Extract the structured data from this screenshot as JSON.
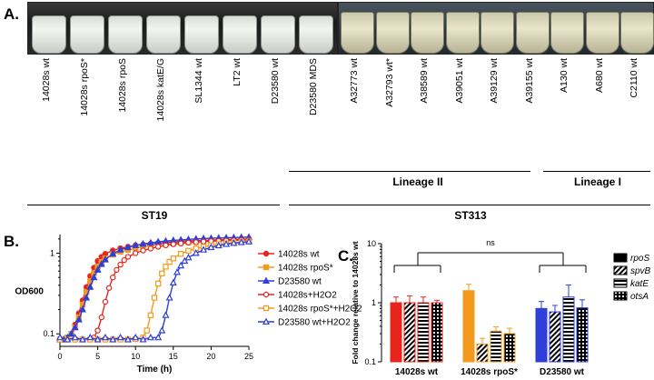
{
  "panels": {
    "a": "A.",
    "b": "B.",
    "c": "C."
  },
  "panel_a": {
    "strains": [
      "14028s wt",
      "14028s rpoS*",
      "14028s rpoS",
      "14028s katE/G",
      "SL1344 wt",
      "LT2 wt",
      "D23580 wt",
      "D23580 MDS",
      "A32773 wt",
      "A32793 wt*",
      "A38589 wt",
      "A39051 wt",
      "A39129 wt",
      "A39155 wt",
      "A130 wt",
      "A680 wt",
      "C2110 wt"
    ],
    "groups": {
      "lineage2": "Lineage II",
      "lineage1": "Lineage I",
      "st19": "ST19",
      "st313": "ST313"
    }
  },
  "chart_data": [
    {
      "type": "line",
      "xlabel": "Time (h)",
      "ylabel": "OD600",
      "x_ticks": [
        0,
        5,
        10,
        15,
        20,
        25
      ],
      "y_ticks": [
        "0.1",
        "1"
      ],
      "xlim": [
        0,
        25
      ],
      "ylim": [
        0.07,
        1.7
      ],
      "y_scale": "log",
      "legend": "right",
      "series": [
        {
          "name": "14028s wt",
          "color": "#e8251d",
          "marker": "circle-filled",
          "x": [
            0,
            0.5,
            1,
            1.5,
            2,
            2.5,
            3,
            3.5,
            4,
            4.5,
            5,
            5.5,
            6,
            7,
            8,
            9,
            10,
            11,
            12,
            13,
            14,
            15,
            16,
            17,
            18,
            19,
            20,
            21,
            22,
            23,
            24,
            25
          ],
          "y": [
            0.085,
            0.085,
            0.09,
            0.1,
            0.13,
            0.18,
            0.26,
            0.38,
            0.52,
            0.66,
            0.8,
            0.9,
            0.98,
            1.08,
            1.15,
            1.2,
            1.25,
            1.28,
            1.31,
            1.34,
            1.36,
            1.38,
            1.4,
            1.42,
            1.43,
            1.44,
            1.45,
            1.46,
            1.47,
            1.48,
            1.49,
            1.5
          ]
        },
        {
          "name": "14028s rpoS*",
          "color": "#f29a1e",
          "marker": "square-filled",
          "x": [
            0,
            0.5,
            1,
            1.5,
            2,
            2.5,
            3,
            3.5,
            4,
            4.5,
            5,
            5.5,
            6,
            7,
            8,
            9,
            10,
            11,
            12,
            13,
            14,
            15,
            16,
            17,
            18,
            19,
            20,
            21,
            22,
            23,
            24,
            25
          ],
          "y": [
            0.085,
            0.085,
            0.09,
            0.1,
            0.12,
            0.16,
            0.23,
            0.33,
            0.45,
            0.57,
            0.68,
            0.78,
            0.86,
            0.96,
            1.04,
            1.1,
            1.15,
            1.2,
            1.24,
            1.27,
            1.3,
            1.32,
            1.34,
            1.36,
            1.38,
            1.4,
            1.41,
            1.42,
            1.43,
            1.44,
            1.45,
            1.46
          ]
        },
        {
          "name": "D23580 wt",
          "color": "#2f3fd8",
          "marker": "triangle-filled",
          "x": [
            0,
            0.5,
            1,
            1.5,
            2,
            2.5,
            3,
            3.5,
            4,
            4.5,
            5,
            5.5,
            6,
            7,
            8,
            9,
            10,
            11,
            12,
            13,
            14,
            15,
            16,
            17,
            18,
            19,
            20,
            21,
            22,
            23,
            24,
            25
          ],
          "y": [
            0.085,
            0.085,
            0.09,
            0.1,
            0.12,
            0.15,
            0.2,
            0.28,
            0.38,
            0.5,
            0.62,
            0.73,
            0.83,
            0.98,
            1.1,
            1.18,
            1.25,
            1.3,
            1.34,
            1.38,
            1.41,
            1.44,
            1.46,
            1.48,
            1.5,
            1.52,
            1.53,
            1.54,
            1.55,
            1.56,
            1.57,
            1.58
          ]
        },
        {
          "name": "14028s+H2O2",
          "color": "#e8251d",
          "marker": "circle-open",
          "x": [
            0,
            1,
            2,
            3,
            4,
            4.5,
            5,
            5.5,
            6,
            6.5,
            7,
            7.5,
            8,
            8.5,
            9,
            10,
            11,
            12,
            13,
            14,
            15,
            16,
            17,
            18,
            19,
            20,
            21,
            22,
            23,
            24,
            25
          ],
          "y": [
            0.085,
            0.085,
            0.085,
            0.085,
            0.086,
            0.09,
            0.11,
            0.16,
            0.25,
            0.37,
            0.5,
            0.62,
            0.72,
            0.82,
            0.9,
            1.0,
            1.08,
            1.14,
            1.2,
            1.25,
            1.29,
            1.32,
            1.35,
            1.37,
            1.39,
            1.41,
            1.42,
            1.43,
            1.44,
            1.45,
            1.46
          ]
        },
        {
          "name": "14028s rpoS*+H2O2",
          "color": "#f29a1e",
          "marker": "square-open",
          "x": [
            0,
            1,
            2,
            3,
            4,
            5,
            6,
            7,
            8,
            9,
            10,
            11,
            11.5,
            12,
            12.5,
            13,
            13.5,
            14,
            14.5,
            15,
            16,
            17,
            18,
            19,
            20,
            21,
            22,
            23,
            24,
            25
          ],
          "y": [
            0.085,
            0.085,
            0.085,
            0.085,
            0.085,
            0.085,
            0.085,
            0.085,
            0.085,
            0.085,
            0.086,
            0.09,
            0.11,
            0.17,
            0.28,
            0.42,
            0.56,
            0.68,
            0.78,
            0.86,
            0.98,
            1.07,
            1.14,
            1.2,
            1.25,
            1.29,
            1.32,
            1.35,
            1.37,
            1.39
          ]
        },
        {
          "name": "D23580 wt+H2O2",
          "color": "#2f3fd8",
          "marker": "triangle-open",
          "x": [
            0,
            1,
            2,
            3,
            4,
            5,
            6,
            7,
            8,
            9,
            10,
            11,
            12,
            13,
            13.5,
            14,
            14.5,
            15,
            15.5,
            16,
            16.5,
            17,
            18,
            19,
            20,
            21,
            22,
            23,
            24,
            25
          ],
          "y": [
            0.09,
            0.085,
            0.09,
            0.085,
            0.09,
            0.085,
            0.09,
            0.085,
            0.09,
            0.085,
            0.09,
            0.085,
            0.09,
            0.09,
            0.11,
            0.17,
            0.28,
            0.43,
            0.58,
            0.7,
            0.8,
            0.88,
            1.0,
            1.1,
            1.18,
            1.24,
            1.29,
            1.33,
            1.36,
            1.39
          ]
        }
      ]
    },
    {
      "type": "bar",
      "ylabel": "Fold change relative to 14028s wt",
      "categories": [
        "14028s wt",
        "14028s rpoS*",
        "D23580 wt"
      ],
      "y_ticks": [
        "0.1",
        "1",
        "10"
      ],
      "ylim": [
        0.1,
        10
      ],
      "y_scale": "log",
      "annotation": "ns",
      "legend": "right",
      "series": [
        {
          "name": "rpoS",
          "values": [
            1.0,
            1.6,
            0.8
          ],
          "errors": [
            0.25,
            0.45,
            0.25
          ],
          "pattern": "solid"
        },
        {
          "name": "spvB",
          "values": [
            1.0,
            0.2,
            0.7
          ],
          "errors": [
            0.3,
            0.05,
            0.2
          ],
          "pattern": "diagonal"
        },
        {
          "name": "katE",
          "values": [
            1.0,
            0.33,
            1.25
          ],
          "errors": [
            0.25,
            0.06,
            0.75
          ],
          "pattern": "horizontal"
        },
        {
          "name": "otsA",
          "values": [
            1.0,
            0.3,
            0.82
          ],
          "errors": [
            0.1,
            0.07,
            0.3
          ],
          "pattern": "grid"
        }
      ],
      "category_colors": [
        "#e8251d",
        "#f29a1e",
        "#2f3fd8"
      ]
    }
  ]
}
